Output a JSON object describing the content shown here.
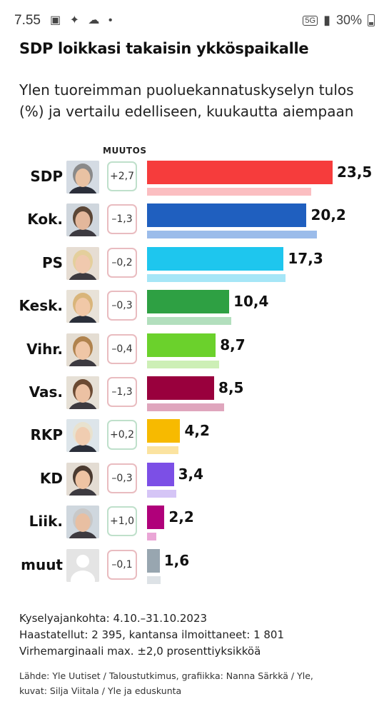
{
  "status_bar": {
    "time": "7.55",
    "network": "5G",
    "battery": "30%"
  },
  "headline": "SDP loikkasi takaisin ykköspaikalle",
  "subtitle": "Ylen tuoreimman puoluekannatuskyselyn tulos (%) ja vertailu edelliseen, kuukautta aiempaan",
  "change_header": "MUUTOS",
  "chart_data": {
    "type": "bar",
    "orientation": "horizontal",
    "unit": "%",
    "categories": [
      "SDP",
      "Kok.",
      "PS",
      "Kesk.",
      "Vihr.",
      "Vas.",
      "RKP",
      "KD",
      "Liik.",
      "muut"
    ],
    "series": [
      {
        "values": [
          23.5,
          20.2,
          17.3,
          10.4,
          8.7,
          8.5,
          4.2,
          3.4,
          2.2,
          1.6
        ]
      },
      {
        "values": [
          20.8,
          21.5,
          17.5,
          10.7,
          9.1,
          9.8,
          4.0,
          3.7,
          1.2,
          1.7
        ]
      }
    ],
    "value_labels": [
      "23,5",
      "20,2",
      "17,3",
      "10,4",
      "8,7",
      "8,5",
      "4,2",
      "3,4",
      "2,2",
      "1,6"
    ],
    "change_labels": [
      "+2,7",
      "–1,3",
      "–0,2",
      "–0,3",
      "–0,4",
      "–1,3",
      "+0,2",
      "–0,3",
      "+1,0",
      "–0,1"
    ],
    "change_signs": [
      "pos",
      "neg",
      "neg",
      "neg",
      "neg",
      "neg",
      "pos",
      "neg",
      "pos",
      "neg"
    ],
    "colors": [
      "#f63c3c",
      "#1f5fbf",
      "#1ec6ee",
      "#2ea043",
      "#6bd12c",
      "#99003d",
      "#f7ba00",
      "#7c4fe6",
      "#b0007a",
      "#98a6b0"
    ],
    "prev_colors": [
      "#fbbec1",
      "#9bbcea",
      "#a6e6f7",
      "#b2dfbd",
      "#cdefb6",
      "#dfa6bd",
      "#fbe3a0",
      "#d5c5f6",
      "#eaa6d6",
      "#dde2e6"
    ],
    "avatars": [
      "person-photo",
      "person-photo",
      "person-photo",
      "person-photo",
      "person-photo",
      "person-photo",
      "person-photo",
      "person-photo",
      "person-photo",
      "placeholder-avatar-icon"
    ],
    "xlim": [
      0,
      25
    ]
  },
  "footer": {
    "survey_period": "Kyselyajankohta: 4.10.–31.10.2023",
    "respondents": "Haastatellut: 2 395, kantansa ilmoittaneet: 1 801",
    "margin_of_error": "Virhemarginaali max. ±2,0 prosenttiyksikköä",
    "source_line1": "Lähde: Yle Uutiset / Taloustutkimus, grafiikka: Nanna Särkkä / Yle,",
    "source_line2": "kuvat: Silja Viitala / Yle ja eduskunta"
  }
}
